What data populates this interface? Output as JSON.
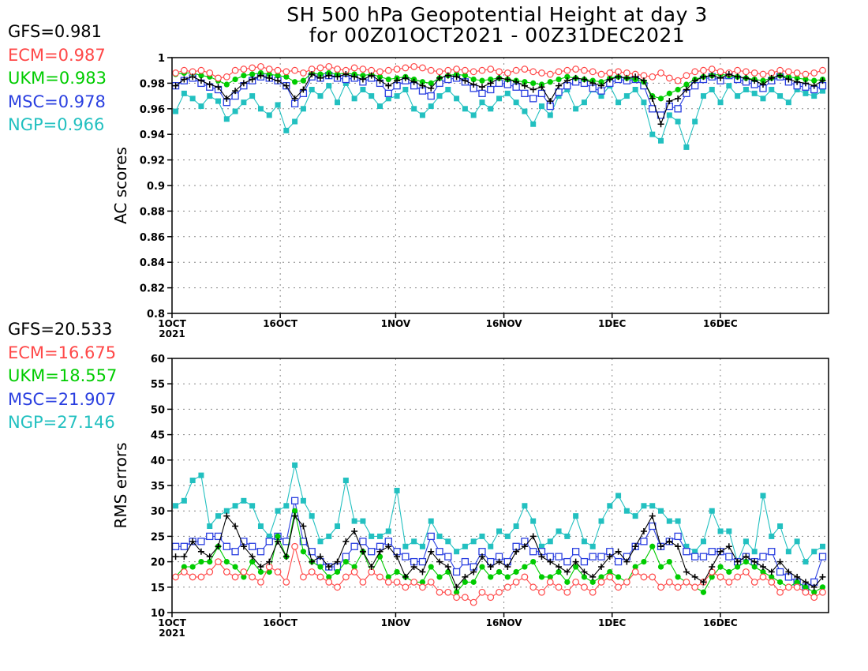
{
  "title_line1": "SH 500 hPa Geopotential Height at day 3",
  "title_line2": "for 00Z01OCT2021 - 00Z31DEC2021",
  "colors": {
    "GFS": "#000000",
    "ECM": "#ff4848",
    "UKM": "#00cc00",
    "MSC": "#2a3fe0",
    "NGP": "#22c0c0"
  },
  "legend_top": [
    {
      "label": "GFS=0.981",
      "model": "GFS"
    },
    {
      "label": "ECM=0.987",
      "model": "ECM"
    },
    {
      "label": "UKM=0.983",
      "model": "UKM"
    },
    {
      "label": "MSC=0.978",
      "model": "MSC"
    },
    {
      "label": "NGP=0.966",
      "model": "NGP"
    }
  ],
  "legend_bottom": [
    {
      "label": "GFS=20.533",
      "model": "GFS"
    },
    {
      "label": "ECM=16.675",
      "model": "ECM"
    },
    {
      "label": "UKM=18.557",
      "model": "UKM"
    },
    {
      "label": "MSC=21.907",
      "model": "MSC"
    },
    {
      "label": "NGP=27.146",
      "model": "NGP"
    }
  ],
  "x_tick_labels": [
    "1OCT",
    "16OCT",
    "1NOV",
    "16NOV",
    "1DEC",
    "16DEC"
  ],
  "x_tick_days": [
    0,
    15,
    31,
    46,
    61,
    76
  ],
  "x_year_label": "2021",
  "chart_data": [
    {
      "type": "line",
      "ylabel": "AC scores",
      "ylim": [
        0.8,
        1.0
      ],
      "yticks": [
        0.8,
        0.82,
        0.84,
        0.86,
        0.88,
        0.9,
        0.92,
        0.94,
        0.96,
        0.98,
        1
      ],
      "ytick_labels": [
        "0.8",
        "0.82",
        "0.84",
        "0.86",
        "0.88",
        "0.9",
        "0.92",
        "0.94",
        "0.96",
        "0.98",
        "1"
      ],
      "x_range_days": [
        0,
        91
      ],
      "grid": true,
      "series": [
        {
          "name": "GFS",
          "marker": "plus",
          "values": [
            0.978,
            0.983,
            0.985,
            0.982,
            0.979,
            0.977,
            0.968,
            0.974,
            0.98,
            0.983,
            0.986,
            0.984,
            0.982,
            0.978,
            0.968,
            0.975,
            0.987,
            0.984,
            0.986,
            0.985,
            0.987,
            0.985,
            0.983,
            0.986,
            0.982,
            0.978,
            0.982,
            0.984,
            0.981,
            0.978,
            0.976,
            0.984,
            0.986,
            0.985,
            0.982,
            0.979,
            0.977,
            0.98,
            0.984,
            0.983,
            0.981,
            0.978,
            0.975,
            0.977,
            0.966,
            0.978,
            0.982,
            0.984,
            0.983,
            0.98,
            0.978,
            0.983,
            0.985,
            0.984,
            0.985,
            0.982,
            0.968,
            0.948,
            0.966,
            0.968,
            0.975,
            0.982,
            0.985,
            0.986,
            0.984,
            0.987,
            0.985,
            0.984,
            0.982,
            0.979,
            0.984,
            0.986,
            0.983,
            0.981,
            0.98,
            0.978,
            0.982
          ]
        },
        {
          "name": "ECM",
          "marker": "circle",
          "values": [
            0.988,
            0.99,
            0.989,
            0.99,
            0.988,
            0.984,
            0.985,
            0.99,
            0.991,
            0.992,
            0.993,
            0.991,
            0.99,
            0.989,
            0.99,
            0.988,
            0.991,
            0.992,
            0.993,
            0.991,
            0.99,
            0.992,
            0.991,
            0.99,
            0.989,
            0.99,
            0.991,
            0.992,
            0.993,
            0.992,
            0.99,
            0.989,
            0.99,
            0.991,
            0.99,
            0.989,
            0.99,
            0.991,
            0.989,
            0.988,
            0.99,
            0.991,
            0.989,
            0.988,
            0.987,
            0.989,
            0.99,
            0.991,
            0.99,
            0.989,
            0.987,
            0.988,
            0.989,
            0.988,
            0.987,
            0.986,
            0.985,
            0.988,
            0.984,
            0.982,
            0.986,
            0.989,
            0.99,
            0.991,
            0.989,
            0.988,
            0.99,
            0.989,
            0.988,
            0.987,
            0.988,
            0.99,
            0.989,
            0.988,
            0.987,
            0.988,
            0.99
          ]
        },
        {
          "name": "UKM",
          "marker": "dot",
          "values": [
            0.987,
            0.988,
            0.988,
            0.986,
            0.985,
            0.982,
            0.979,
            0.983,
            0.986,
            0.987,
            0.988,
            0.987,
            0.986,
            0.985,
            0.981,
            0.982,
            0.988,
            0.987,
            0.988,
            0.987,
            0.988,
            0.987,
            0.986,
            0.987,
            0.985,
            0.983,
            0.984,
            0.985,
            0.983,
            0.981,
            0.98,
            0.984,
            0.986,
            0.987,
            0.986,
            0.983,
            0.982,
            0.983,
            0.984,
            0.983,
            0.982,
            0.981,
            0.98,
            0.979,
            0.981,
            0.983,
            0.985,
            0.984,
            0.983,
            0.982,
            0.981,
            0.984,
            0.985,
            0.984,
            0.983,
            0.981,
            0.97,
            0.968,
            0.972,
            0.975,
            0.979,
            0.983,
            0.985,
            0.986,
            0.987,
            0.986,
            0.985,
            0.984,
            0.983,
            0.982,
            0.984,
            0.986,
            0.985,
            0.984,
            0.983,
            0.982,
            0.983
          ]
        },
        {
          "name": "MSC",
          "marker": "square",
          "values": [
            0.978,
            0.982,
            0.984,
            0.98,
            0.977,
            0.975,
            0.965,
            0.97,
            0.978,
            0.982,
            0.985,
            0.984,
            0.982,
            0.978,
            0.964,
            0.972,
            0.985,
            0.984,
            0.986,
            0.984,
            0.983,
            0.984,
            0.981,
            0.984,
            0.98,
            0.972,
            0.978,
            0.982,
            0.978,
            0.974,
            0.97,
            0.98,
            0.983,
            0.984,
            0.981,
            0.976,
            0.972,
            0.975,
            0.98,
            0.979,
            0.977,
            0.972,
            0.968,
            0.972,
            0.962,
            0.973,
            0.978,
            0.981,
            0.98,
            0.976,
            0.974,
            0.98,
            0.983,
            0.982,
            0.983,
            0.978,
            0.96,
            0.955,
            0.962,
            0.96,
            0.972,
            0.978,
            0.983,
            0.985,
            0.982,
            0.986,
            0.983,
            0.981,
            0.979,
            0.976,
            0.982,
            0.985,
            0.981,
            0.978,
            0.977,
            0.975,
            0.978
          ]
        },
        {
          "name": "NGP",
          "marker": "filled-square",
          "values": [
            0.958,
            0.972,
            0.968,
            0.962,
            0.97,
            0.966,
            0.952,
            0.958,
            0.965,
            0.97,
            0.96,
            0.955,
            0.963,
            0.943,
            0.95,
            0.96,
            0.975,
            0.97,
            0.978,
            0.965,
            0.98,
            0.968,
            0.975,
            0.97,
            0.962,
            0.968,
            0.97,
            0.975,
            0.96,
            0.955,
            0.962,
            0.97,
            0.975,
            0.968,
            0.96,
            0.955,
            0.965,
            0.96,
            0.968,
            0.972,
            0.965,
            0.958,
            0.948,
            0.962,
            0.955,
            0.97,
            0.975,
            0.96,
            0.965,
            0.975,
            0.97,
            0.978,
            0.965,
            0.97,
            0.975,
            0.965,
            0.94,
            0.935,
            0.955,
            0.95,
            0.93,
            0.95,
            0.97,
            0.975,
            0.965,
            0.978,
            0.97,
            0.975,
            0.972,
            0.968,
            0.975,
            0.97,
            0.965,
            0.975,
            0.972,
            0.97,
            0.974
          ]
        }
      ]
    },
    {
      "type": "line",
      "ylabel": "RMS errors",
      "ylim": [
        10,
        60
      ],
      "yticks": [
        10,
        15,
        20,
        25,
        30,
        35,
        40,
        45,
        50,
        55,
        60
      ],
      "ytick_labels": [
        "10",
        "15",
        "20",
        "25",
        "30",
        "35",
        "40",
        "45",
        "50",
        "55",
        "60"
      ],
      "x_range_days": [
        0,
        91
      ],
      "grid": true,
      "series": [
        {
          "name": "GFS",
          "marker": "plus",
          "values": [
            21,
            21,
            24,
            22,
            21,
            23,
            29,
            27,
            23,
            21,
            19,
            20,
            24,
            21,
            29,
            27,
            20,
            21,
            19,
            20,
            24,
            26,
            22,
            19,
            22,
            23,
            21,
            17,
            19,
            18,
            22,
            20,
            19,
            15,
            17,
            18,
            21,
            19,
            20,
            19,
            22,
            23,
            25,
            21,
            20,
            19,
            18,
            20,
            18,
            17,
            19,
            21,
            22,
            20,
            23,
            26,
            29,
            23,
            24,
            23,
            18,
            17,
            16,
            19,
            22,
            23,
            20,
            21,
            20,
            19,
            18,
            20,
            18,
            17,
            16,
            15,
            17
          ]
        },
        {
          "name": "ECM",
          "marker": "circle",
          "values": [
            17,
            18,
            17,
            17,
            18,
            20,
            18,
            17,
            18,
            17,
            16,
            19,
            18,
            16,
            23,
            17,
            18,
            17,
            16,
            15,
            17,
            18,
            16,
            18,
            17,
            16,
            16,
            15,
            16,
            15,
            16,
            14,
            14,
            13,
            13,
            12,
            14,
            13,
            14,
            15,
            16,
            17,
            15,
            14,
            16,
            15,
            14,
            16,
            15,
            14,
            16,
            17,
            15,
            16,
            18,
            17,
            17,
            15,
            16,
            15,
            16,
            15,
            16,
            18,
            17,
            16,
            17,
            18,
            16,
            17,
            16,
            14,
            15,
            15,
            14,
            13,
            14
          ]
        },
        {
          "name": "UKM",
          "marker": "dot",
          "values": [
            17,
            19,
            19,
            20,
            20,
            23,
            20,
            19,
            17,
            20,
            18,
            18,
            25,
            21,
            30,
            22,
            20,
            19,
            17,
            18,
            20,
            19,
            22,
            18,
            21,
            17,
            18,
            17,
            16,
            16,
            19,
            17,
            18,
            14,
            16,
            16,
            19,
            17,
            18,
            17,
            18,
            19,
            20,
            17,
            17,
            18,
            16,
            19,
            17,
            16,
            17,
            18,
            17,
            16,
            19,
            20,
            23,
            19,
            20,
            17,
            16,
            15,
            14,
            17,
            19,
            18,
            19,
            20,
            19,
            18,
            17,
            16,
            15,
            16,
            15,
            14,
            15
          ]
        },
        {
          "name": "MSC",
          "marker": "square",
          "values": [
            23,
            23,
            24,
            24,
            25,
            25,
            23,
            22,
            24,
            23,
            22,
            24,
            25,
            24,
            32,
            24,
            22,
            20,
            19,
            19,
            21,
            23,
            24,
            22,
            23,
            24,
            22,
            21,
            20,
            20,
            25,
            22,
            21,
            18,
            20,
            19,
            22,
            20,
            21,
            20,
            23,
            24,
            22,
            22,
            21,
            21,
            20,
            22,
            20,
            21,
            21,
            22,
            20,
            21,
            23,
            24,
            27,
            23,
            24,
            25,
            22,
            21,
            21,
            22,
            22,
            21,
            20,
            21,
            20,
            21,
            22,
            18,
            17,
            16,
            15,
            16,
            21
          ]
        },
        {
          "name": "NGP",
          "marker": "filled-square",
          "values": [
            31,
            32,
            36,
            37,
            27,
            29,
            30,
            31,
            32,
            31,
            27,
            25,
            30,
            31,
            39,
            32,
            29,
            24,
            25,
            27,
            36,
            28,
            28,
            25,
            25,
            26,
            34,
            23,
            24,
            23,
            28,
            25,
            24,
            22,
            23,
            24,
            25,
            23,
            26,
            25,
            27,
            31,
            28,
            23,
            24,
            26,
            25,
            29,
            24,
            23,
            28,
            31,
            33,
            30,
            29,
            31,
            31,
            30,
            28,
            28,
            23,
            22,
            24,
            30,
            26,
            26,
            20,
            24,
            22,
            33,
            25,
            27,
            22,
            24,
            20,
            22,
            23
          ]
        }
      ]
    }
  ]
}
